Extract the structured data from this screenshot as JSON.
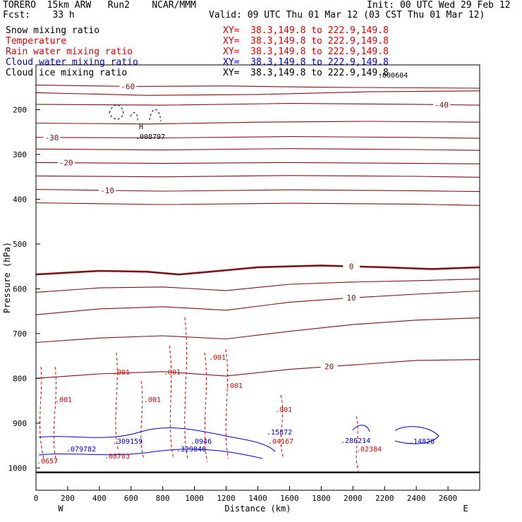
{
  "header": {
    "model": "TORERO  15km ARW   Run2    NCAR/MMM",
    "init": "Init: 00 UTC Wed 29 Feb 12",
    "fcst": "Fcst:    33 h",
    "valid": "Valid: 09 UTC Thu 01 Mar 12 (03 CST Thu 01 Mar 12)",
    "fields": [
      {
        "label": "Snow mixing ratio",
        "xy": "XY=  38.3,149.8 to 222.9,149.8",
        "color": "#000000"
      },
      {
        "label": "Temperature",
        "xy": "XY=  38.3,149.8 to 222.9,149.8",
        "color": "#e00000"
      },
      {
        "label": "Rain water mixing ratio",
        "xy": "XY=  38.3,149.8 to 222.9,149.8",
        "color": "#e00000"
      },
      {
        "label": "Cloud water mixing ratio",
        "xy": "XY=  38.3,149.8 to 222.9,149.8",
        "color": "#0000cc"
      },
      {
        "label": "Cloud ice mixing ratio",
        "xy": "XY=  38.3,149.8 to 222.9,149.8",
        "color": "#000000"
      }
    ]
  },
  "chart_data": {
    "type": "line",
    "title": "",
    "xlabel": "Distance (km)",
    "ylabel": "Pressure (hPa)",
    "xlim": [
      0,
      2800
    ],
    "ylim": [
      1050,
      100
    ],
    "x_ticks": [
      0,
      200,
      400,
      600,
      800,
      1000,
      1200,
      1400,
      1600,
      1800,
      2000,
      2200,
      2400,
      2600
    ],
    "y_ticks": [
      200,
      300,
      400,
      500,
      600,
      700,
      800,
      900,
      1000
    ],
    "x_end_labels": {
      "left": "W",
      "right": "E"
    },
    "temperature_contours": [
      {
        "value": -60,
        "label": "-60",
        "label_x": 580,
        "points": [
          [
            0,
            145
          ],
          [
            600,
            148
          ],
          [
            1200,
            147
          ],
          [
            1800,
            150
          ],
          [
            2800,
            152
          ]
        ]
      },
      {
        "value": -50,
        "label": "",
        "points": [
          [
            0,
            162
          ],
          [
            700,
            168
          ],
          [
            1400,
            166
          ],
          [
            2100,
            160
          ],
          [
            2800,
            158
          ]
        ]
      },
      {
        "value": -40,
        "label": "-40",
        "label_x": 2560,
        "points": [
          [
            0,
            188
          ],
          [
            800,
            190
          ],
          [
            1600,
            186
          ],
          [
            2400,
            188
          ],
          [
            2800,
            190
          ]
        ]
      },
      {
        "value": -35,
        "label": "",
        "points": [
          [
            0,
            230
          ],
          [
            700,
            232
          ],
          [
            1400,
            228
          ],
          [
            2100,
            226
          ],
          [
            2800,
            228
          ]
        ]
      },
      {
        "value": -30,
        "label": "-30",
        "label_x": 100,
        "points": [
          [
            0,
            262
          ],
          [
            800,
            263
          ],
          [
            1600,
            260
          ],
          [
            2400,
            262
          ],
          [
            2800,
            264
          ]
        ]
      },
      {
        "value": -25,
        "label": "",
        "points": [
          [
            0,
            288
          ],
          [
            800,
            290
          ],
          [
            1600,
            287
          ],
          [
            2400,
            289
          ],
          [
            2800,
            291
          ]
        ]
      },
      {
        "value": -20,
        "label": "-20",
        "label_x": 190,
        "points": [
          [
            0,
            318
          ],
          [
            800,
            320
          ],
          [
            1600,
            318
          ],
          [
            2400,
            320
          ],
          [
            2800,
            321
          ]
        ]
      },
      {
        "value": -15,
        "label": "",
        "points": [
          [
            0,
            348
          ],
          [
            800,
            350
          ],
          [
            1600,
            347
          ],
          [
            2400,
            349
          ],
          [
            2800,
            351
          ]
        ]
      },
      {
        "value": -10,
        "label": "-10",
        "label_x": 450,
        "points": [
          [
            0,
            378
          ],
          [
            800,
            382
          ],
          [
            1600,
            379
          ],
          [
            2400,
            381
          ],
          [
            2800,
            383
          ]
        ]
      },
      {
        "value": -5,
        "label": "",
        "points": [
          [
            0,
            408
          ],
          [
            800,
            412
          ],
          [
            1600,
            409
          ],
          [
            2400,
            411
          ],
          [
            2800,
            414
          ]
        ]
      },
      {
        "value": 0,
        "label": "0",
        "label_x": 1990,
        "points": [
          [
            0,
            568
          ],
          [
            400,
            560
          ],
          [
            700,
            562
          ],
          [
            900,
            568
          ],
          [
            1100,
            562
          ],
          [
            1400,
            552
          ],
          [
            1800,
            548
          ],
          [
            2200,
            552
          ],
          [
            2500,
            556
          ],
          [
            2800,
            552
          ]
        ]
      },
      {
        "value": 5,
        "label": "",
        "points": [
          [
            0,
            608
          ],
          [
            400,
            598
          ],
          [
            800,
            596
          ],
          [
            1200,
            604
          ],
          [
            1600,
            590
          ],
          [
            2000,
            585
          ],
          [
            2400,
            582
          ],
          [
            2800,
            578
          ]
        ]
      },
      {
        "value": 10,
        "label": "10",
        "label_x": 1990,
        "points": [
          [
            0,
            658
          ],
          [
            400,
            645
          ],
          [
            800,
            640
          ],
          [
            1200,
            648
          ],
          [
            1600,
            630
          ],
          [
            2000,
            620
          ],
          [
            2400,
            612
          ],
          [
            2800,
            605
          ]
        ]
      },
      {
        "value": 15,
        "label": "",
        "points": [
          [
            0,
            720
          ],
          [
            400,
            710
          ],
          [
            800,
            705
          ],
          [
            1200,
            712
          ],
          [
            1600,
            695
          ],
          [
            2000,
            680
          ],
          [
            2400,
            670
          ],
          [
            2800,
            665
          ]
        ]
      },
      {
        "value": 20,
        "label": "20",
        "label_x": 1850,
        "points": [
          [
            0,
            800
          ],
          [
            400,
            790
          ],
          [
            800,
            785
          ],
          [
            1200,
            795
          ],
          [
            1600,
            780
          ],
          [
            2000,
            770
          ],
          [
            2400,
            760
          ],
          [
            2800,
            758
          ]
        ]
      }
    ],
    "rain_contour_labels": [
      ".001",
      ".001",
      ".001",
      ".001",
      ".001",
      ".001",
      ".001"
    ],
    "rain_max_labels": [
      ".08703",
      ".04167",
      ".02384",
      ".0657"
    ],
    "cloud_water_max_labels": [
      ".079782",
      ".309159",
      ".329846",
      ".15872",
      ".286214",
      ".14828",
      ".0946"
    ],
    "ice_max_labels": [
      ".008797",
      ".000604"
    ],
    "extra_labels": [
      "H"
    ]
  }
}
